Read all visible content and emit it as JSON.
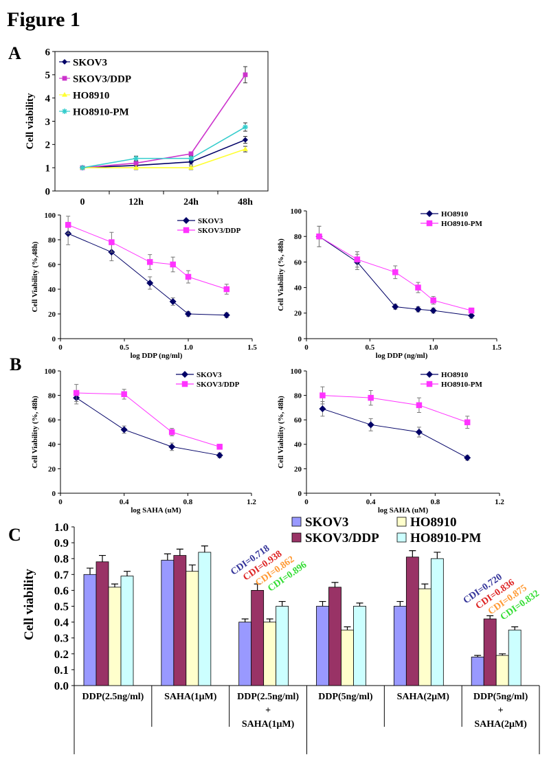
{
  "figure_title": "Figure 1",
  "panel_labels": [
    "A",
    "B",
    "C"
  ],
  "chart_data": [
    {
      "id": "A",
      "type": "line",
      "categories": [
        "0",
        "12h",
        "24h",
        "48h"
      ],
      "ylabel": "Cell viability",
      "xlabel": "",
      "ylim": [
        0,
        6
      ],
      "yticks": [
        0,
        1,
        2,
        3,
        4,
        5,
        6
      ],
      "legend": "top-left",
      "grid": false,
      "series": [
        {
          "name": "SKOV3",
          "color": "#000066",
          "marker": "diamond",
          "values": [
            1,
            1.1,
            1.25,
            2.2
          ],
          "err": [
            0.05,
            0.1,
            0.1,
            0.15
          ]
        },
        {
          "name": "SKOV3/DDP",
          "color": "#cc33cc",
          "marker": "square",
          "values": [
            1,
            1.2,
            1.6,
            5.0
          ],
          "err": [
            0.05,
            0.1,
            0.08,
            0.35
          ]
        },
        {
          "name": "HO8910",
          "color": "#ffff33",
          "marker": "triangle",
          "values": [
            1,
            1.0,
            1.0,
            1.8
          ],
          "err": [
            0.05,
            0.08,
            0.08,
            0.12
          ]
        },
        {
          "name": "HO8910-PM",
          "color": "#33cccc",
          "marker": "asterisk",
          "values": [
            1,
            1.4,
            1.4,
            2.75
          ],
          "err": [
            0.05,
            0.1,
            0.1,
            0.18
          ]
        }
      ]
    },
    {
      "id": "B1",
      "type": "line",
      "xlabel": "log DDP (ng/ml)",
      "ylabel": "Cell Viability (%,48h)",
      "xlim": [
        0,
        1.5
      ],
      "xticks": [
        "0",
        "0.5",
        "1.0",
        "1.5"
      ],
      "ylim": [
        0,
        100
      ],
      "yticks": [
        0,
        20,
        40,
        60,
        80,
        100
      ],
      "legend": "top-right",
      "grid": false,
      "series": [
        {
          "name": "SKOV3",
          "color": "#000066",
          "marker": "diamond",
          "x": [
            0.06,
            0.4,
            0.7,
            0.88,
            1.0,
            1.3
          ],
          "values": [
            85,
            70,
            45,
            30,
            20,
            19
          ],
          "err": [
            9,
            7,
            5,
            3,
            2,
            2
          ]
        },
        {
          "name": "SKOV3/DDP",
          "color": "#ff33ff",
          "marker": "square",
          "x": [
            0.06,
            0.4,
            0.7,
            0.88,
            1.0,
            1.3
          ],
          "values": [
            92,
            78,
            62,
            60,
            50,
            40
          ],
          "err": [
            7,
            8,
            6,
            6,
            5,
            4
          ]
        }
      ]
    },
    {
      "id": "B2",
      "type": "line",
      "xlabel": "log DDP (ng/ml)",
      "ylabel": "Cell Viability (%, 48h)",
      "xlim": [
        0,
        1.5
      ],
      "xticks": [
        "0",
        "0.5",
        "1.0",
        "1.5"
      ],
      "ylim": [
        0,
        100
      ],
      "yticks": [
        0,
        20,
        40,
        60,
        80,
        100
      ],
      "legend": "top-right",
      "grid": false,
      "series": [
        {
          "name": "HO8910",
          "color": "#000066",
          "marker": "diamond",
          "x": [
            0.1,
            0.4,
            0.7,
            0.88,
            1.0,
            1.3
          ],
          "values": [
            80,
            60,
            25,
            23,
            22,
            18
          ],
          "err": [
            8,
            6,
            2,
            2,
            2,
            2
          ]
        },
        {
          "name": "HO8910-PM",
          "color": "#ff33ff",
          "marker": "square",
          "x": [
            0.1,
            0.4,
            0.7,
            0.88,
            1.0,
            1.3
          ],
          "values": [
            80,
            62,
            52,
            40,
            30,
            22
          ],
          "err": [
            8,
            6,
            5,
            4,
            3,
            2
          ]
        }
      ]
    },
    {
      "id": "B3",
      "type": "line",
      "xlabel": "log SAHA (uM)",
      "ylabel": "Cell Viability (%, 48h)",
      "xlim": [
        0,
        1.2
      ],
      "xticks": [
        "0",
        "0.4",
        "0.8",
        "1.2"
      ],
      "ylim": [
        0,
        100
      ],
      "yticks": [
        0,
        20,
        40,
        60,
        80,
        100
      ],
      "legend": "top-right",
      "grid": false,
      "series": [
        {
          "name": "SKOV3",
          "color": "#000066",
          "marker": "diamond",
          "x": [
            0.1,
            0.4,
            0.7,
            1.0
          ],
          "values": [
            78,
            52,
            38,
            31
          ],
          "err": [
            5,
            3,
            3,
            2
          ]
        },
        {
          "name": "SKOV3/DDP",
          "color": "#ff33ff",
          "marker": "square",
          "x": [
            0.1,
            0.4,
            0.7,
            1.0
          ],
          "values": [
            82,
            81,
            50,
            38
          ],
          "err": [
            7,
            4,
            3,
            2
          ]
        }
      ]
    },
    {
      "id": "B4",
      "type": "line",
      "xlabel": "log SAHA (uM)",
      "ylabel": "Cell Viability (%, 48h)",
      "xlim": [
        0,
        1.2
      ],
      "xticks": [
        "0",
        "0.4",
        "0.8",
        "1.2"
      ],
      "ylim": [
        0,
        100
      ],
      "yticks": [
        0,
        20,
        40,
        60,
        80,
        100
      ],
      "legend": "top-right",
      "grid": false,
      "series": [
        {
          "name": "HO8910",
          "color": "#000066",
          "marker": "diamond",
          "x": [
            0.1,
            0.4,
            0.7,
            1.0
          ],
          "values": [
            69,
            56,
            50,
            29
          ],
          "err": [
            6,
            5,
            4,
            2
          ]
        },
        {
          "name": "HO8910-PM",
          "color": "#ff33ff",
          "marker": "square",
          "x": [
            0.1,
            0.4,
            0.7,
            1.0
          ],
          "values": [
            80,
            78,
            72,
            58
          ],
          "err": [
            7,
            6,
            6,
            5
          ]
        }
      ]
    },
    {
      "id": "C",
      "type": "bar",
      "ylabel": "Cell viability",
      "ylim": [
        0,
        1.0
      ],
      "yticks": [
        "0.0",
        "0.1",
        "0.2",
        "0.3",
        "0.4",
        "0.5",
        "0.6",
        "0.7",
        "0.8",
        "0.9",
        "1.0"
      ],
      "legend": "top-right",
      "grid": false,
      "categories": [
        [
          "DDP(2.5ng/ml)"
        ],
        [
          "SAHA(1μM)"
        ],
        [
          "DDP(2.5ng/ml)",
          "+",
          "SAHA(1μM)"
        ],
        [
          "DDP(5ng/ml)"
        ],
        [
          "SAHA(2μM)"
        ],
        [
          "DDP(5ng/ml)",
          "+",
          "SAHA(2μM)"
        ]
      ],
      "series": [
        {
          "name": "SKOV3",
          "color": "#9999ff",
          "values": [
            0.7,
            0.79,
            0.4,
            0.5,
            0.5,
            0.18
          ],
          "err": [
            0.04,
            0.04,
            0.02,
            0.03,
            0.03,
            0.01
          ]
        },
        {
          "name": "SKOV3/DDP",
          "color": "#993366",
          "values": [
            0.78,
            0.82,
            0.6,
            0.62,
            0.81,
            0.42
          ],
          "err": [
            0.04,
            0.04,
            0.04,
            0.03,
            0.04,
            0.02
          ]
        },
        {
          "name": "HO8910",
          "color": "#ffffcc",
          "values": [
            0.62,
            0.72,
            0.4,
            0.35,
            0.61,
            0.19
          ],
          "err": [
            0.02,
            0.04,
            0.02,
            0.02,
            0.03,
            0.01
          ]
        },
        {
          "name": "HO8910-PM",
          "color": "#ccffff",
          "values": [
            0.69,
            0.84,
            0.5,
            0.5,
            0.8,
            0.35
          ],
          "err": [
            0.03,
            0.04,
            0.03,
            0.02,
            0.04,
            0.02
          ]
        }
      ],
      "annotations": [
        {
          "group": 2,
          "labels": [
            {
              "text": "CDI=0.718",
              "color": "#333399"
            },
            {
              "text": "CDI=0.938",
              "color": "#dd2222"
            },
            {
              "text": "CDI=0.862",
              "color": "#ff9933"
            },
            {
              "text": "CDI=0.896",
              "color": "#33dd33"
            }
          ]
        },
        {
          "group": 5,
          "labels": [
            {
              "text": "CDI=0.720",
              "color": "#333399"
            },
            {
              "text": "CDI=0.836",
              "color": "#dd2222"
            },
            {
              "text": "CDI=0.875",
              "color": "#ff9933"
            },
            {
              "text": "CDI=0.832",
              "color": "#33dd33"
            }
          ]
        }
      ]
    }
  ]
}
